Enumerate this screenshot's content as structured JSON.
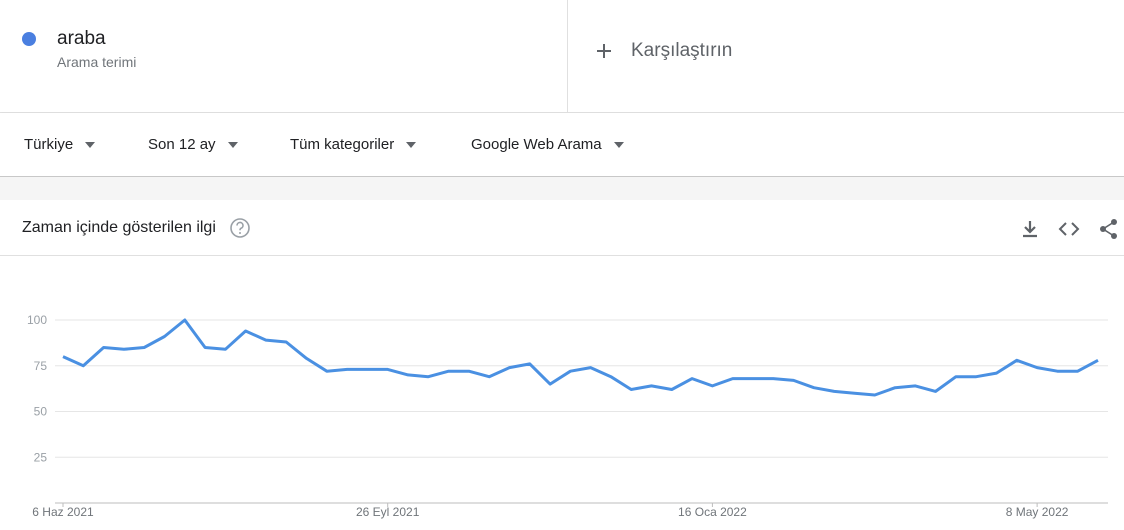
{
  "search_term": {
    "sublabel": "Arama terimi"
  },
  "compare": {
    "label": "Karşılaştırın"
  },
  "filters": [
    "Türkiye",
    "Son 12 ay",
    "Tüm kategoriler",
    "Google Web Arama"
  ],
  "chart_data": {
    "type": "line",
    "title": "Zaman içinde gösterilen ilgi",
    "categories": [
      "6 Haz 2021",
      null,
      null,
      null,
      null,
      null,
      null,
      null,
      null,
      null,
      null,
      null,
      null,
      null,
      null,
      null,
      "26 Eyl 2021",
      null,
      null,
      null,
      null,
      null,
      null,
      null,
      null,
      null,
      null,
      null,
      null,
      null,
      null,
      null,
      "16 Oca 2022",
      null,
      null,
      null,
      null,
      null,
      null,
      null,
      null,
      null,
      null,
      null,
      null,
      null,
      null,
      null,
      "8 May 2022",
      null,
      null,
      null
    ],
    "series": [
      {
        "name": "araba",
        "color": "#4a90e2",
        "values": [
          80,
          75,
          85,
          84,
          85,
          91,
          100,
          85,
          84,
          94,
          89,
          88,
          79,
          72,
          73,
          73,
          73,
          70,
          69,
          72,
          72,
          69,
          74,
          76,
          65,
          72,
          74,
          69,
          62,
          64,
          62,
          68,
          64,
          68,
          68,
          68,
          67,
          63,
          61,
          60,
          59,
          63,
          64,
          61,
          69,
          69,
          71,
          78,
          74,
          72,
          72,
          78
        ]
      }
    ],
    "ylim": [
      0,
      100
    ],
    "yticks": [
      25,
      50,
      75,
      100
    ],
    "grid": true
  }
}
